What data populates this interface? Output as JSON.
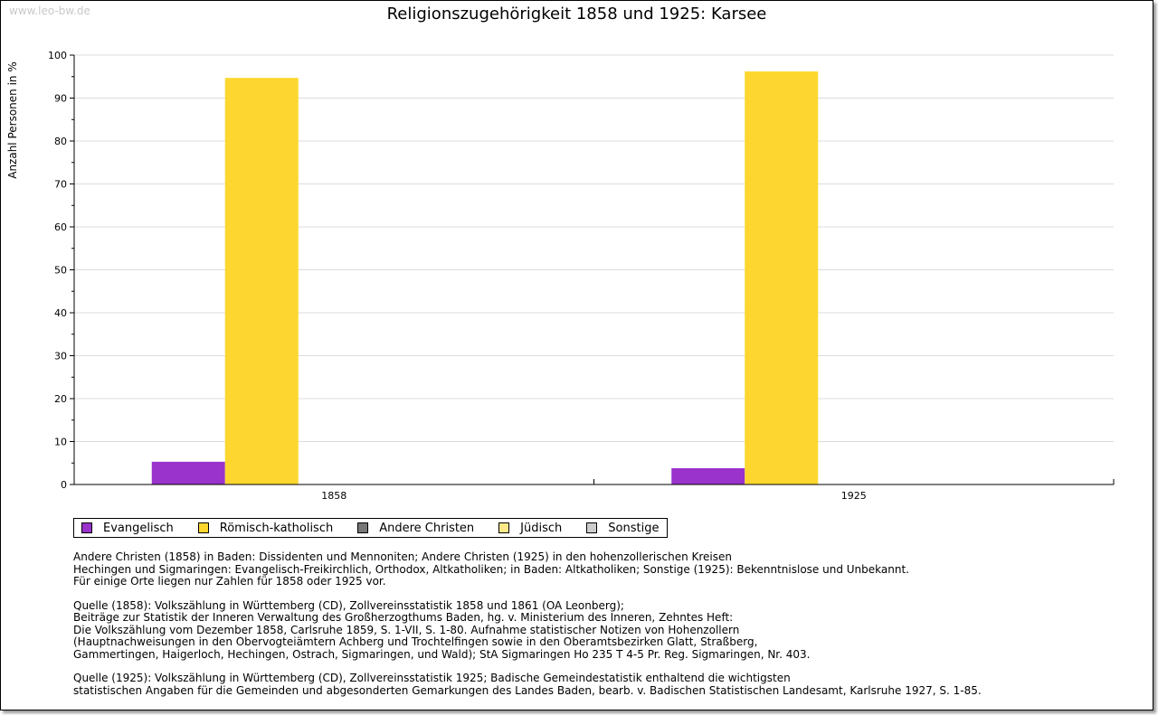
{
  "watermark": "www.leo-bw.de",
  "chart_data": {
    "type": "bar",
    "title": "Religionszugehörigkeit 1858 und 1925: Karsee",
    "ylabel": "Anzahl Personen in %",
    "xlabel": "",
    "ylim": [
      0,
      100
    ],
    "yticks": [
      "0",
      "10",
      "20",
      "30",
      "40",
      "50",
      "60",
      "70",
      "80",
      "90",
      "100"
    ],
    "grid": true,
    "categories": [
      "1858",
      "1925"
    ],
    "series": [
      {
        "name": "Evangelisch",
        "color": "#9933cc",
        "values": [
          5.3,
          3.8
        ]
      },
      {
        "name": "Römisch-katholisch",
        "color": "#fdd72f",
        "values": [
          94.7,
          96.2
        ]
      },
      {
        "name": "Andere Christen",
        "color": "#777777",
        "values": [
          0,
          0
        ]
      },
      {
        "name": "Jüdisch",
        "color": "#fde98a",
        "values": [
          0,
          0
        ]
      },
      {
        "name": "Sonstige",
        "color": "#cccccc",
        "values": [
          0,
          0
        ]
      }
    ],
    "legend_position": "bottom-left"
  },
  "notes": [
    [
      "Andere Christen (1858) in Baden: Dissidenten und Mennoniten; Andere Christen (1925) in den hohenzollerischen Kreisen",
      "Hechingen und Sigmaringen: Evangelisch-Freikirchlich, Orthodox, Altkatholiken; in Baden: Altkatholiken; Sonstige (1925): Bekenntnislose und Unbekannt.",
      "Für einige Orte liegen nur Zahlen für 1858 oder 1925 vor."
    ],
    [
      "Quelle (1858): Volkszählung in Württemberg (CD), Zollvereinsstatistik 1858 und 1861 (OA Leonberg);",
      "Beiträge zur Statistik der Inneren Verwaltung des Großherzogthums Baden, hg. v. Ministerium des Inneren, Zehntes Heft:",
      "Die Volkszählung vom Dezember 1858, Carlsruhe 1859, S. 1-VII, S. 1-80. Aufnahme statistischer Notizen von Hohenzollern",
      "(Hauptnachweisungen in den Obervogteiämtern Achberg und Trochtelfingen sowie in den Oberamtsbezirken Glatt, Straßberg,",
      "Gammertingen, Haigerloch, Hechingen, Ostrach, Sigmaringen, und Wald); StA Sigmaringen Ho 235 T 4-5 Pr. Reg. Sigmaringen, Nr. 403."
    ],
    [
      "Quelle (1925): Volkszählung in Württemberg (CD), Zollvereinsstatistik 1925; Badische Gemeindestatistik enthaltend die wichtigsten",
      "statistischen Angaben für die Gemeinden und abgesonderten Gemarkungen des Landes Baden, bearb. v. Badischen Statistischen Landesamt, Karlsruhe 1927, S. 1-85."
    ]
  ]
}
